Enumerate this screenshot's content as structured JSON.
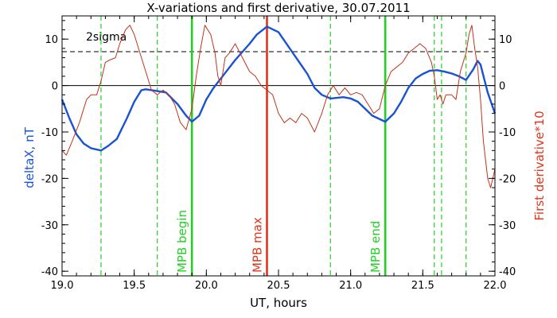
{
  "chart_data": {
    "type": "line",
    "title": "X-variations and first derivative, 30.07.2011",
    "xlabel": "UT, hours",
    "ylabel_left": "deltaX, nT",
    "ylabel_right": "First derivative*10",
    "xlim": [
      19.0,
      22.0
    ],
    "ylim": [
      -41,
      15
    ],
    "x_ticks": [
      19.0,
      19.5,
      20.0,
      20.5,
      21.0,
      21.5,
      22.0
    ],
    "x_tick_labels": [
      "19.0",
      "19.5",
      "20.0",
      "20.5",
      "21.0",
      "21.5",
      "22.0"
    ],
    "y_ticks": [
      10,
      0,
      -10,
      -20,
      -30,
      -40
    ],
    "y_tick_labels": [
      "10",
      "0",
      "-10",
      "-20",
      "-30",
      "-40"
    ],
    "grid": false,
    "reference_lines": [
      {
        "y": 0,
        "style": "solid",
        "color": "#000000"
      },
      {
        "y": 7.3,
        "style": "dashed",
        "color": "#000000",
        "label": "2sigma"
      }
    ],
    "vertical_lines": [
      {
        "x": 19.9,
        "color": "#22d222",
        "style": "solid",
        "label": "MPB begin"
      },
      {
        "x": 20.42,
        "color": "#e0341b",
        "style": "solid",
        "label": "MPB max"
      },
      {
        "x": 21.24,
        "color": "#22d222",
        "style": "solid",
        "label": "MPB end"
      },
      {
        "x": 19.27,
        "color": "#22d222",
        "style": "dashed"
      },
      {
        "x": 19.66,
        "color": "#22d222",
        "style": "dashed"
      },
      {
        "x": 20.86,
        "color": "#22d222",
        "style": "dashed"
      },
      {
        "x": 21.58,
        "color": "#22d222",
        "style": "dashed"
      },
      {
        "x": 21.63,
        "color": "#22d222",
        "style": "dashed"
      },
      {
        "x": 21.8,
        "color": "#22d222",
        "style": "dashed"
      }
    ],
    "series": [
      {
        "color": "#1a52d6",
        "axis": "left",
        "x": [
          19.0,
          19.05,
          19.1,
          19.15,
          19.2,
          19.27,
          19.32,
          19.38,
          19.45,
          19.5,
          19.55,
          19.58,
          19.62,
          19.66,
          19.72,
          19.8,
          19.86,
          19.9,
          19.95,
          20.0,
          20.05,
          20.1,
          20.2,
          20.3,
          20.35,
          20.42,
          20.5,
          20.6,
          20.7,
          20.75,
          20.8,
          20.86,
          20.95,
          21.0,
          21.05,
          21.1,
          21.15,
          21.24,
          21.3,
          21.35,
          21.4,
          21.45,
          21.5,
          21.55,
          21.6,
          21.65,
          21.7,
          21.75,
          21.8,
          21.85,
          21.88,
          21.9,
          21.95,
          22.0
        ],
        "values": [
          -3,
          -7,
          -10.5,
          -12.5,
          -13.5,
          -14,
          -13,
          -11.5,
          -7,
          -3.5,
          -1,
          -0.8,
          -1,
          -1.2,
          -1.5,
          -4,
          -6.5,
          -7.8,
          -6.5,
          -3,
          -0.5,
          1.5,
          5.5,
          9,
          11,
          12.7,
          11.5,
          7,
          2.5,
          -0.5,
          -2,
          -2.8,
          -2.5,
          -2.8,
          -3.5,
          -5,
          -6.5,
          -7.8,
          -6,
          -3.5,
          -0.5,
          1.5,
          2.5,
          3.2,
          3.3,
          3.0,
          2.6,
          2.0,
          1.2,
          3.5,
          5.3,
          4.5,
          -1.5,
          -6
        ]
      },
      {
        "color": "#c0341b",
        "axis": "right",
        "x": [
          19.0,
          19.03,
          19.07,
          19.12,
          19.17,
          19.2,
          19.24,
          19.27,
          19.3,
          19.33,
          19.37,
          19.4,
          19.44,
          19.47,
          19.5,
          19.53,
          19.58,
          19.62,
          19.66,
          19.7,
          19.74,
          19.78,
          19.82,
          19.86,
          19.9,
          19.93,
          19.96,
          19.99,
          20.03,
          20.06,
          20.08,
          20.1,
          20.13,
          20.16,
          20.2,
          20.25,
          20.3,
          20.34,
          20.38,
          20.42,
          20.46,
          20.5,
          20.54,
          20.58,
          20.62,
          20.66,
          20.7,
          20.75,
          20.8,
          20.84,
          20.88,
          20.92,
          20.96,
          21.0,
          21.04,
          21.08,
          21.12,
          21.16,
          21.2,
          21.24,
          21.28,
          21.32,
          21.36,
          21.4,
          21.44,
          21.48,
          21.52,
          21.56,
          21.58,
          21.6,
          21.62,
          21.64,
          21.66,
          21.7,
          21.73,
          21.76,
          21.8,
          21.82,
          21.84,
          21.86,
          21.88,
          21.9,
          21.92,
          21.95,
          21.97,
          22.0
        ],
        "values": [
          -14,
          -15,
          -12,
          -8,
          -3,
          -2,
          -2,
          1,
          5,
          5.5,
          6,
          9,
          12,
          13,
          11,
          8,
          3,
          -1,
          -2,
          -1,
          -2,
          -4,
          -8,
          -9.5,
          -5,
          2,
          8,
          13,
          11,
          7,
          2,
          0,
          6,
          7,
          9,
          6,
          3,
          2,
          0,
          -1,
          -2,
          -6,
          -8,
          -7,
          -8,
          -6,
          -7,
          -10,
          -6,
          -2,
          0,
          -2,
          -0.5,
          -2,
          -1.5,
          -2,
          -4,
          -6,
          -5,
          0,
          3,
          4,
          5,
          7,
          8,
          9,
          8,
          5,
          2,
          -3,
          -2,
          -4,
          -2,
          -2,
          -3,
          3,
          7,
          11,
          13,
          8,
          4,
          -3,
          -12,
          -20,
          -22,
          -18
        ]
      }
    ]
  }
}
